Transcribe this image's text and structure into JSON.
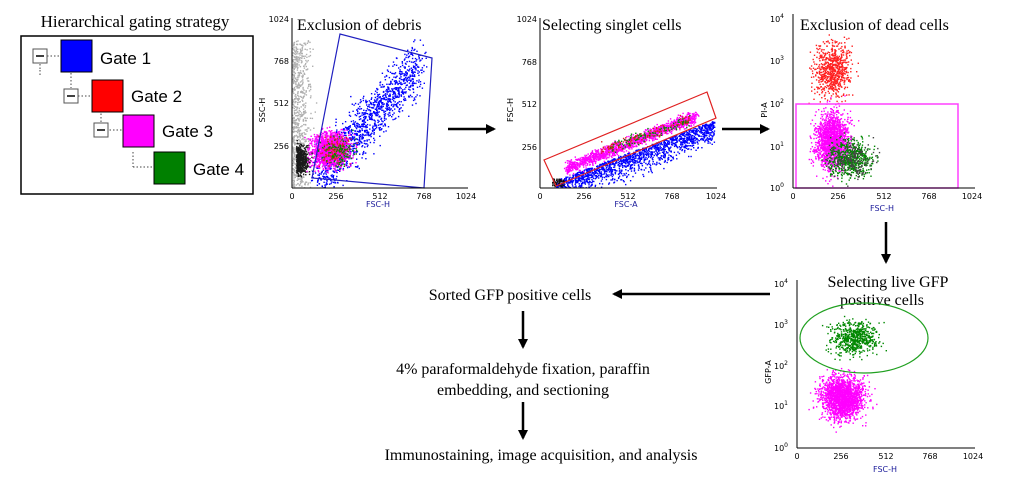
{
  "legend": {
    "title": "Hierarchical gating strategy",
    "gates": [
      {
        "label": "Gate 1",
        "color": "#0000ff"
      },
      {
        "label": "Gate 2",
        "color": "#ff0000"
      },
      {
        "label": "Gate 3",
        "color": "#ff00ff"
      },
      {
        "label": "Gate 4",
        "color": "#008000"
      }
    ],
    "expander_symbol": "−"
  },
  "plots": [
    {
      "id": "debris",
      "title": "Exclusion of debris",
      "xlabel": "FSC-H",
      "ylabel": "SSC-H",
      "scale": "linear",
      "xticks": [
        "0",
        "256",
        "512",
        "768",
        "1024"
      ],
      "yticks": [
        "256",
        "512",
        "768",
        "1024"
      ],
      "gate_color": "#2020c0"
    },
    {
      "id": "singlet",
      "title": "Selecting singlet cells",
      "xlabel": "FSC-A",
      "ylabel": "FSC-H",
      "scale": "linear",
      "xticks": [
        "0",
        "256",
        "512",
        "768",
        "1024"
      ],
      "yticks": [
        "256",
        "512",
        "768",
        "1024"
      ],
      "gate_color": "#e02020"
    },
    {
      "id": "dead",
      "title": "Exclusion of dead cells",
      "xlabel": "FSC-H",
      "ylabel": "PI-A",
      "scale": "log",
      "xticks": [
        "0",
        "256",
        "512",
        "768",
        "1024"
      ],
      "yticks": [
        "10",
        "10",
        "10",
        "10",
        "10"
      ],
      "ysup": [
        "0",
        "1",
        "2",
        "3",
        "4"
      ],
      "gate_color": "#ff40ff"
    },
    {
      "id": "gfp",
      "title_lines": [
        "Selecting live  GFP",
        "positive  cells"
      ],
      "xlabel": "FSC-H",
      "ylabel": "GFP-A",
      "scale": "log",
      "xticks": [
        "0",
        "256",
        "512",
        "768",
        "1024"
      ],
      "yticks": [
        "10",
        "10",
        "10",
        "10",
        "10"
      ],
      "ysup": [
        "0",
        "1",
        "2",
        "3",
        "4"
      ],
      "gate_color": "#20a020"
    }
  ],
  "workflow": [
    "Sorted GFP positive cells",
    "4% paraformaldehyde fixation, paraffin",
    "embedding, and sectioning",
    "Immunostaining, image acquisition, and analysis"
  ]
}
